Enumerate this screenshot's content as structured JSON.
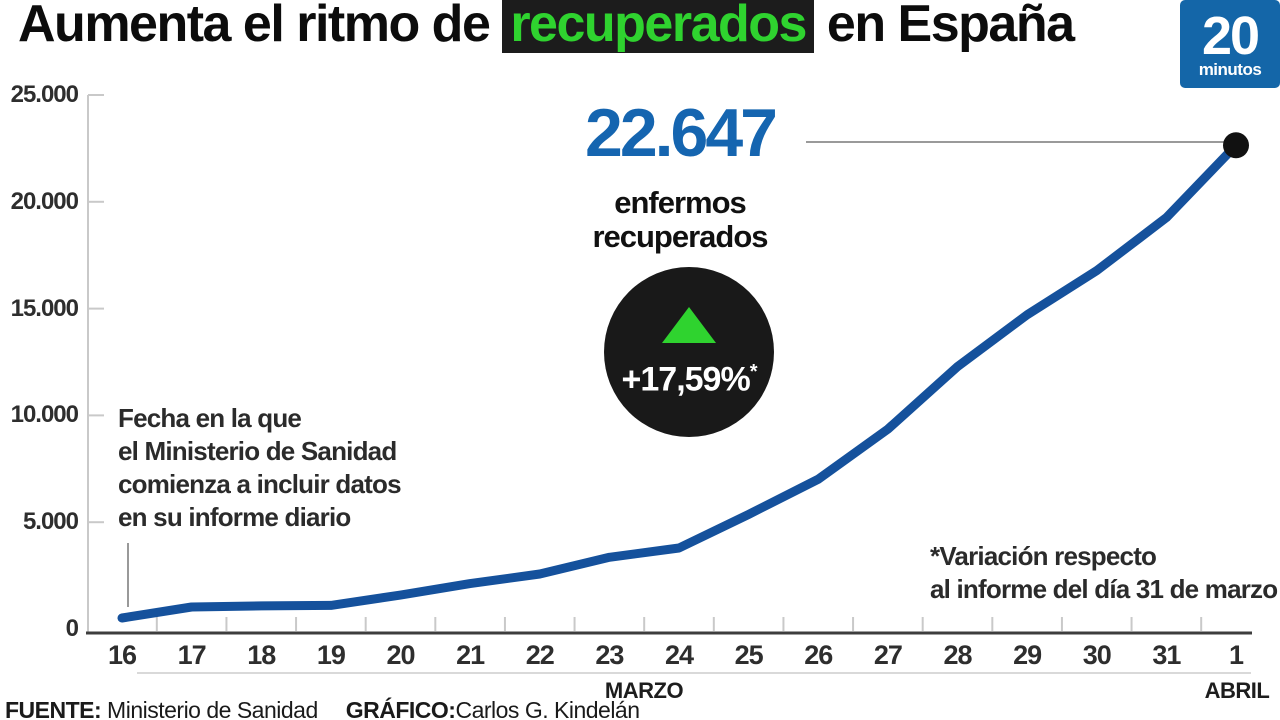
{
  "title": {
    "pre": "Aumenta el ritmo de ",
    "highlight": "recuperados",
    "post": " en España"
  },
  "logo": {
    "number": "20",
    "word": "minutos"
  },
  "callout": {
    "value": "22.647",
    "label_line1": "enfermos",
    "label_line2": "recuperados",
    "pct": "+17,59%",
    "pct_asterisk": "*"
  },
  "annotation_left": {
    "text": "Fecha en la que\nel Ministerio de Sanidad\ncomienza a incluir datos\nen su informe diario"
  },
  "annotation_right": {
    "text": "*Variación respecto\nal informe del día 31 de marzo"
  },
  "footer": {
    "source_label": "FUENTE:",
    "source": " Ministerio de Sanidad",
    "credit_label": "GRÁFICO:",
    "credit": "Carlos G. Kindelán"
  },
  "axis": {
    "y_tick_labels": [
      "25.000",
      "20.000",
      "15.000",
      "10.000",
      "5.000",
      "0"
    ],
    "month_left": "MARZO",
    "month_right": "ABRIL"
  },
  "chart_data": {
    "type": "line",
    "title": "Aumenta el ritmo de recuperados en España",
    "categories": [
      "16",
      "17",
      "18",
      "19",
      "20",
      "21",
      "22",
      "23",
      "24",
      "25",
      "26",
      "27",
      "28",
      "29",
      "30",
      "31",
      "1"
    ],
    "category_months": "16-31 MARZO, 1 ABRIL",
    "values": [
      517,
      1028,
      1081,
      1107,
      1588,
      2125,
      2575,
      3355,
      3794,
      5367,
      7015,
      9357,
      12285,
      14709,
      16780,
      19259,
      22647
    ],
    "final_value": 22647,
    "final_value_label": "22.647 enfermos recuperados",
    "change_pct_label": "+17,59% variación respecto al informe del día 31 de marzo",
    "ylim": [
      0,
      25000
    ],
    "y_tick_step": 5000,
    "grid": false,
    "colors": {
      "line": "#15519c",
      "endpoint_dot": "#111111",
      "big_number_blue": "#1565b0",
      "highlight_green": "#2fd32f",
      "highlight_bg": "#1c1c1c",
      "logo_blue": "#1466a8",
      "axis_gray": "#c9c9c9",
      "axis_dark": "#3d3d3d"
    }
  }
}
